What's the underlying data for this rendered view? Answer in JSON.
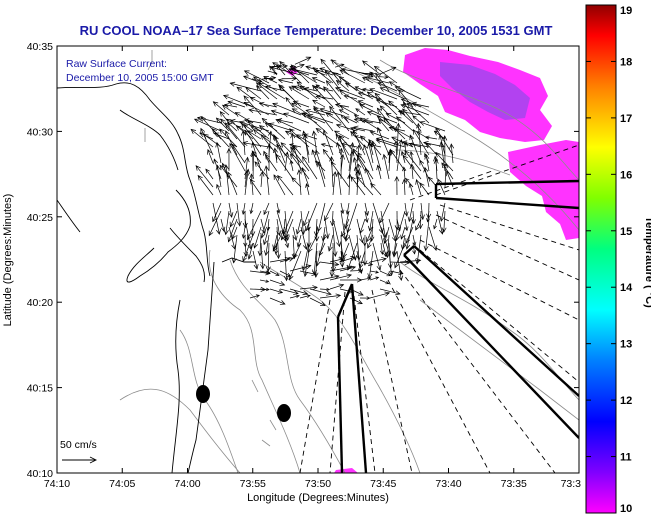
{
  "title": "RU COOL  NOAA–17  Sea Surface Temperature:  December 10, 2005 1531 GMT",
  "legend": {
    "line1": "Raw Surface Current:",
    "line2": "December 10, 2005 15:00 GMT",
    "scale_label": "50 cm/s"
  },
  "axes": {
    "xlabel": "Longitude (Degrees:Minutes)",
    "ylabel": "Latitude (Degrees:Minutes)",
    "xticks": [
      "74:10",
      "74:05",
      "74:00",
      "73:55",
      "73:50",
      "73:45",
      "73:40",
      "73:35",
      "73:3"
    ],
    "yticks": [
      "40:35",
      "40:30",
      "40:25",
      "40:20",
      "40:15",
      "40:10"
    ]
  },
  "colorbar": {
    "label": "Temperature ( °C)",
    "ticks": [
      "19",
      "18",
      "17",
      "16",
      "15",
      "14",
      "13",
      "12",
      "11",
      "10"
    ],
    "min": 10,
    "max": 19
  },
  "colors": {
    "title": "#1a1aa8",
    "sst_warm": "#ff33ff",
    "sst_cool": "#aa44ee",
    "vector": "#000000"
  }
}
